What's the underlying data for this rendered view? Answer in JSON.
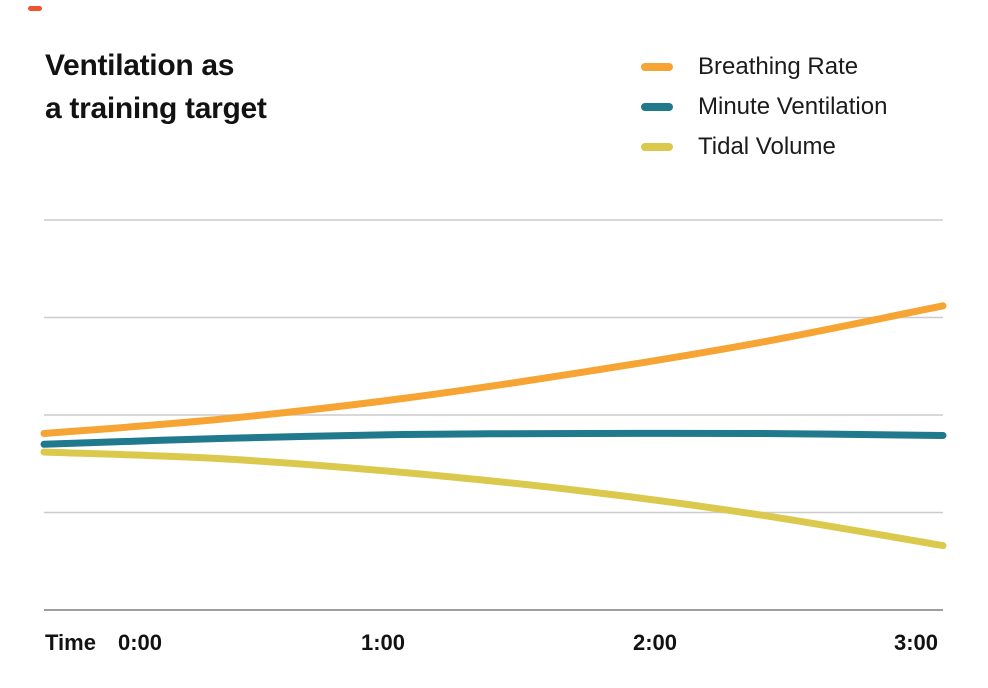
{
  "title": {
    "line1": "Ventilation as",
    "line2": "a training target"
  },
  "colors": {
    "accent_dash": "#F0542F",
    "gridline": "#CCCCCC",
    "axis": "#9E9E9E",
    "text": "#121212"
  },
  "chart_data": {
    "type": "line",
    "title": "Ventilation as a training target",
    "xlabel": "Time",
    "x": [
      0,
      0.6,
      1.2,
      1.8,
      2.4,
      3.0
    ],
    "x_ticks": [
      "0:00",
      "1:00",
      "2:00",
      "3:00"
    ],
    "series": [
      {
        "name": "Breathing Rate",
        "color": "#F6A433",
        "values": [
          1.81,
          1.96,
          2.17,
          2.44,
          2.75,
          3.12
        ]
      },
      {
        "name": "Minute Ventilation",
        "color": "#20798C",
        "values": [
          1.7,
          1.76,
          1.8,
          1.81,
          1.81,
          1.79
        ]
      },
      {
        "name": "Tidal Volume",
        "color": "#DBC94E",
        "values": [
          1.62,
          1.55,
          1.41,
          1.22,
          0.97,
          0.66
        ]
      }
    ],
    "ylim": [
      0,
      4.6
    ],
    "gridline_values": [
      1,
      2,
      3,
      4
    ],
    "y_axis_labels_visible": false,
    "grid": "horizontal-only",
    "legend_position": "top-right"
  }
}
